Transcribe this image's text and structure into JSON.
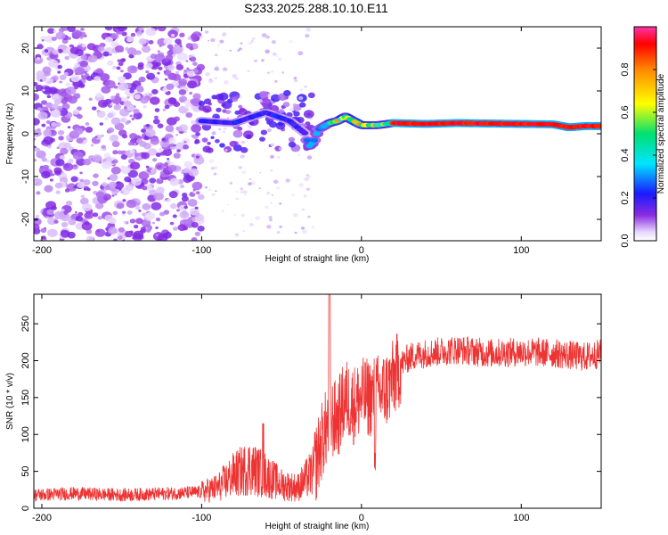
{
  "page_title": "S233.2025.288.10.10.E11",
  "chart_data": [
    {
      "type": "heatmap",
      "title": "S233.2025.288.10.10.E11",
      "xlabel": "Height of straight line (km)",
      "ylabel": "Frequency (Hz)",
      "xlim": [
        -205,
        150
      ],
      "ylim": [
        -25,
        25
      ],
      "xticks": [
        -200,
        -100,
        0,
        100
      ],
      "yticks": [
        -20,
        -10,
        0,
        10,
        20
      ],
      "ridge_points": [
        [
          -100,
          3
        ],
        [
          -80,
          2.5
        ],
        [
          -60,
          5
        ],
        [
          -45,
          3
        ],
        [
          -35,
          0
        ],
        [
          -33,
          -3
        ],
        [
          -30,
          -2
        ],
        [
          -27,
          1
        ],
        [
          -20,
          2.5
        ],
        [
          -15,
          3
        ],
        [
          -10,
          4
        ],
        [
          -5,
          3
        ],
        [
          0,
          2
        ],
        [
          10,
          2
        ],
        [
          20,
          2.5
        ],
        [
          40,
          2.3
        ],
        [
          60,
          2.5
        ],
        [
          100,
          2.3
        ],
        [
          120,
          2.2
        ],
        [
          130,
          1.5
        ],
        [
          140,
          1.8
        ],
        [
          150,
          1.8
        ]
      ],
      "colorbar": {
        "label": "Normalized spectral amplitude",
        "range": [
          0,
          1
        ],
        "ticks": [
          "0.0",
          "0.2",
          "0.4",
          "0.6",
          "0.8"
        ]
      }
    },
    {
      "type": "line",
      "xlabel": "Height of straight line (km)",
      "ylabel": "SNR (10 * v/v)",
      "xlim": [
        -205,
        150
      ],
      "ylim": [
        0,
        290
      ],
      "xticks": [
        -200,
        -100,
        0,
        100
      ],
      "yticks": [
        0,
        50,
        100,
        150,
        200,
        250
      ],
      "series": [
        {
          "name": "SNR",
          "color": "#ee3333",
          "x": [
            -205,
            -180,
            -150,
            -120,
            -100,
            -90,
            -80,
            -70,
            -60,
            -50,
            -40,
            -30,
            -25,
            -20,
            -15,
            -10,
            -5,
            0,
            5,
            10,
            15,
            20,
            25,
            30,
            40,
            60,
            80,
            100,
            120,
            140,
            150
          ],
          "y": [
            18,
            20,
            18,
            20,
            22,
            28,
            45,
            55,
            45,
            32,
            28,
            50,
            90,
            120,
            120,
            150,
            140,
            150,
            150,
            155,
            160,
            175,
            195,
            205,
            210,
            215,
            210,
            212,
            210,
            205,
            210
          ]
        }
      ]
    }
  ]
}
